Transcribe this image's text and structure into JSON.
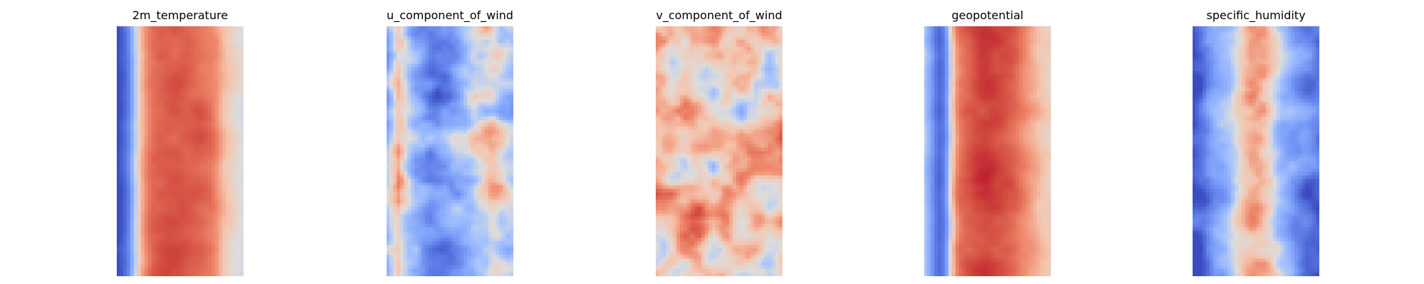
{
  "figure": {
    "type": "heatmap_grid",
    "colormap": "coolwarm",
    "axes": "off",
    "colors": {
      "low": "#3b4cc0",
      "mid": "#dddddd",
      "high": "#b40426",
      "background": "#ffffff"
    }
  },
  "chart_data": [
    {
      "type": "heatmap",
      "title": "2m_temperature",
      "colormap": "coolwarm",
      "grid": false,
      "pattern": "cold left edge, broad warm band across the middle, cooler toward right edge",
      "profile_by_column": [
        0.0,
        0.06,
        0.16,
        0.36,
        0.56,
        0.7,
        0.78,
        0.82,
        0.84,
        0.85,
        0.86,
        0.86,
        0.86,
        0.85,
        0.84,
        0.83,
        0.82,
        0.8,
        0.78,
        0.74,
        0.66,
        0.6,
        0.56,
        0.52,
        0.5
      ]
    },
    {
      "type": "heatmap",
      "title": "u_component_of_wind",
      "colormap": "coolwarm",
      "grid": false,
      "pattern": "mostly cool with streaks of warm along left and right; turbulent small-scale structure",
      "profile_by_column": [
        0.38,
        0.52,
        0.66,
        0.56,
        0.42,
        0.32,
        0.28,
        0.24,
        0.22,
        0.2,
        0.2,
        0.22,
        0.24,
        0.28,
        0.32,
        0.36,
        0.4,
        0.46,
        0.5,
        0.54,
        0.58,
        0.56,
        0.5,
        0.46,
        0.42
      ]
    },
    {
      "type": "heatmap",
      "title": "v_component_of_wind",
      "colormap": "coolwarm",
      "grid": false,
      "pattern": "mostly warm-neutral with scattered blue and red eddies throughout",
      "profile_by_column": [
        0.62,
        0.6,
        0.58,
        0.56,
        0.56,
        0.58,
        0.6,
        0.62,
        0.62,
        0.6,
        0.58,
        0.58,
        0.6,
        0.62,
        0.62,
        0.6,
        0.6,
        0.6,
        0.62,
        0.62,
        0.6,
        0.58,
        0.58,
        0.6,
        0.62
      ]
    },
    {
      "type": "heatmap",
      "title": "geopotential",
      "colormap": "coolwarm",
      "grid": false,
      "pattern": "cold left edge, strong warm core band in the middle, lighter warm toward right edge",
      "profile_by_column": [
        0.4,
        0.28,
        0.14,
        0.08,
        0.2,
        0.52,
        0.72,
        0.8,
        0.84,
        0.86,
        0.88,
        0.89,
        0.9,
        0.9,
        0.89,
        0.88,
        0.86,
        0.84,
        0.8,
        0.76,
        0.72,
        0.68,
        0.64,
        0.6,
        0.58
      ]
    },
    {
      "type": "heatmap",
      "title": "specific_humidity",
      "colormap": "coolwarm",
      "grid": false,
      "pattern": "deep cold flanks, narrow warm-moist band slightly right of center with red spots",
      "profile_by_column": [
        0.02,
        0.06,
        0.12,
        0.2,
        0.26,
        0.3,
        0.34,
        0.4,
        0.48,
        0.56,
        0.62,
        0.66,
        0.68,
        0.66,
        0.62,
        0.56,
        0.48,
        0.4,
        0.34,
        0.28,
        0.22,
        0.18,
        0.14,
        0.12,
        0.1
      ]
    }
  ]
}
